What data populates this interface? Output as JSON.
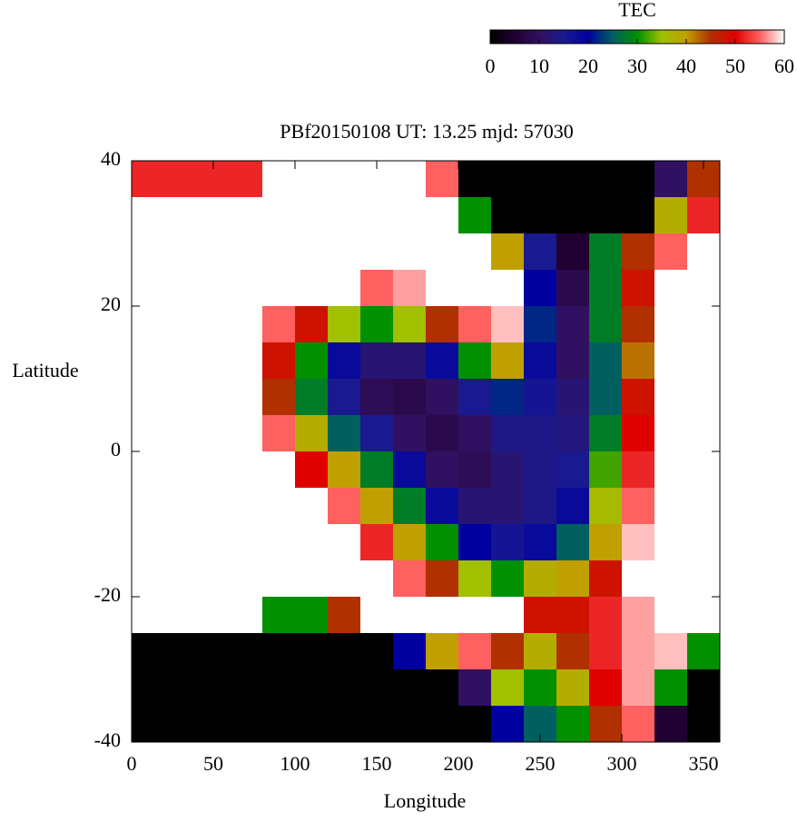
{
  "chart_data": {
    "type": "heatmap",
    "title": "PBf20150108  UT: 13.25  mjd: 57030",
    "xlabel": "Longitude",
    "ylabel": "Latitude",
    "colorbar_label": "TEC",
    "xlim": [
      0,
      360
    ],
    "ylim": [
      -40,
      40
    ],
    "xticks": [
      0,
      50,
      100,
      150,
      200,
      250,
      300,
      350
    ],
    "yticks": [
      -40,
      -20,
      0,
      20,
      40
    ],
    "clim": [
      0,
      60
    ],
    "cticks": [
      0,
      10,
      20,
      30,
      40,
      50,
      60
    ],
    "colormap": [
      "#000000",
      "#200030",
      "#301060",
      "#1a1a90",
      "#0000a0",
      "#006060",
      "#009000",
      "#a0c000",
      "#c0a000",
      "#b03000",
      "#e00000",
      "#ff6060",
      "#ffffff"
    ],
    "xbins": [
      0,
      20,
      40,
      60,
      80,
      100,
      120,
      140,
      160,
      180,
      200,
      220,
      240,
      260,
      280,
      300,
      320,
      340,
      360
    ],
    "ybins": [
      40,
      35,
      30,
      25,
      20,
      15,
      10,
      5,
      0,
      -5,
      -10,
      -15,
      -20,
      -25,
      -30,
      -35,
      -40
    ],
    "z": [
      [
        52,
        52,
        52,
        52,
        60,
        60,
        60,
        60,
        60,
        55,
        0,
        0,
        0,
        0,
        0,
        0,
        10,
        45
      ],
      [
        60,
        60,
        60,
        60,
        60,
        60,
        60,
        60,
        60,
        60,
        30,
        0,
        0,
        0,
        0,
        0,
        38,
        52
      ],
      [
        60,
        60,
        60,
        60,
        60,
        60,
        60,
        60,
        60,
        60,
        60,
        40,
        15,
        5,
        28,
        45,
        55,
        60
      ],
      [
        60,
        60,
        60,
        60,
        60,
        60,
        60,
        55,
        57,
        60,
        60,
        60,
        20,
        8,
        28,
        48,
        60,
        60
      ],
      [
        60,
        60,
        60,
        60,
        55,
        48,
        35,
        30,
        35,
        45,
        55,
        58,
        22,
        10,
        28,
        45,
        60,
        60
      ],
      [
        60,
        60,
        60,
        60,
        48,
        30,
        18,
        12,
        12,
        18,
        30,
        40,
        18,
        10,
        25,
        42,
        60,
        60
      ],
      [
        60,
        60,
        60,
        60,
        45,
        28,
        15,
        9,
        8,
        10,
        15,
        22,
        16,
        12,
        25,
        48,
        60,
        60
      ],
      [
        60,
        60,
        60,
        60,
        55,
        38,
        25,
        15,
        10,
        8,
        10,
        14,
        14,
        13,
        28,
        50,
        60,
        60
      ],
      [
        60,
        60,
        60,
        60,
        60,
        50,
        40,
        28,
        18,
        10,
        9,
        12,
        14,
        15,
        32,
        52,
        60,
        60
      ],
      [
        60,
        60,
        60,
        60,
        60,
        60,
        55,
        40,
        28,
        18,
        12,
        12,
        14,
        18,
        36,
        55,
        60,
        60
      ],
      [
        60,
        60,
        60,
        60,
        60,
        60,
        60,
        52,
        40,
        30,
        20,
        16,
        18,
        25,
        40,
        58,
        60,
        60
      ],
      [
        60,
        60,
        60,
        60,
        60,
        60,
        60,
        60,
        55,
        45,
        35,
        30,
        38,
        40,
        48,
        60,
        60,
        60
      ],
      [
        60,
        60,
        60,
        60,
        30,
        30,
        45,
        60,
        60,
        60,
        60,
        60,
        48,
        48,
        52,
        57,
        60,
        60
      ],
      [
        0,
        0,
        0,
        0,
        0,
        0,
        0,
        0,
        20,
        40,
        55,
        45,
        38,
        45,
        52,
        57,
        58,
        30
      ],
      [
        0,
        0,
        0,
        0,
        0,
        0,
        0,
        0,
        0,
        0,
        10,
        35,
        30,
        38,
        50,
        57,
        30,
        0
      ],
      [
        0,
        0,
        0,
        0,
        0,
        0,
        0,
        0,
        0,
        0,
        0,
        20,
        25,
        30,
        45,
        55,
        5,
        0
      ]
    ]
  }
}
